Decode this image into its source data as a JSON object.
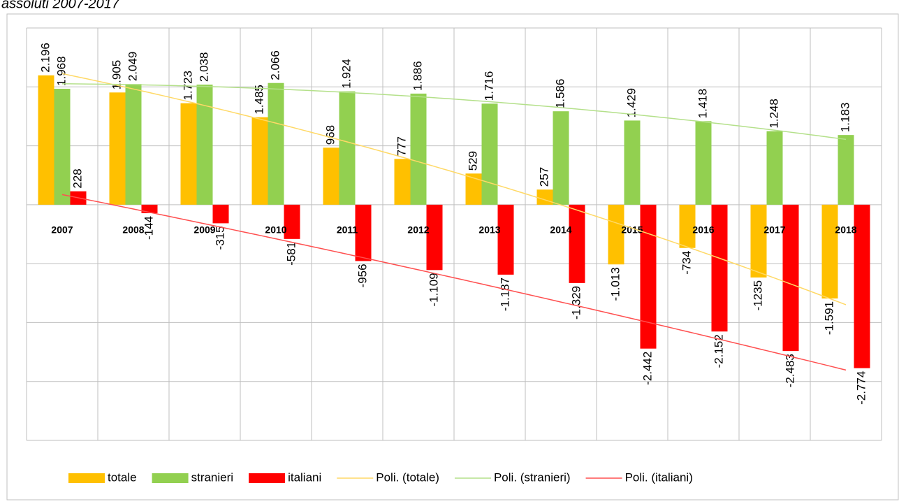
{
  "chart_data": {
    "type": "bar",
    "title": "assoluti 2007-2017",
    "categories": [
      "2007",
      "2008",
      "2009",
      "2010",
      "2011",
      "2012",
      "2013",
      "2014",
      "2015",
      "2016",
      "2017",
      "2018"
    ],
    "series": [
      {
        "name": "totale",
        "color": "#ffc000",
        "values": [
          2196,
          1905,
          1723,
          1485,
          968,
          777,
          529,
          257,
          -1013,
          -734,
          -1235,
          -1591
        ],
        "value_labels": [
          "2.196",
          "1.905",
          "1.723",
          "1.485",
          "968",
          "777",
          "529",
          "257",
          "-1.013",
          "-734",
          "-1235",
          "-1.591"
        ]
      },
      {
        "name": "stranieri",
        "color": "#92d050",
        "values": [
          1968,
          2049,
          2038,
          2066,
          1924,
          1886,
          1716,
          1586,
          1429,
          1418,
          1248,
          1183
        ],
        "value_labels": [
          "1.968",
          "2.049",
          "2.038",
          "2.066",
          "1.924",
          "1.886",
          "1.716",
          "1.586",
          "1.429",
          "1.418",
          "1.248",
          "1.183"
        ]
      },
      {
        "name": "italiani",
        "color": "#ff0000",
        "values": [
          228,
          -144,
          -315,
          -581,
          -956,
          -1109,
          -1187,
          -1329,
          -2442,
          -2152,
          -2483,
          -2774
        ],
        "value_labels": [
          "228",
          "-144",
          "-315",
          "-581",
          "-956",
          "-1.109",
          "-1.187",
          "-1.329",
          "-2.442",
          "-2.152",
          "-2.483",
          "-2.774"
        ]
      }
    ],
    "trendlines": [
      {
        "name": "Poli. (totale)",
        "series": 0,
        "order": 2,
        "color": "#ffd966"
      },
      {
        "name": "Poli. (stranieri)",
        "series": 1,
        "order": 2,
        "color": "#b4e08a"
      },
      {
        "name": "Poli. (italiani)",
        "series": 2,
        "order": 2,
        "color": "#ff5050"
      }
    ],
    "ylim": [
      -4000,
      3000
    ],
    "yticks": [
      -4000,
      -3000,
      -2000,
      -1000,
      0,
      1000,
      2000,
      3000
    ],
    "grid": true
  }
}
